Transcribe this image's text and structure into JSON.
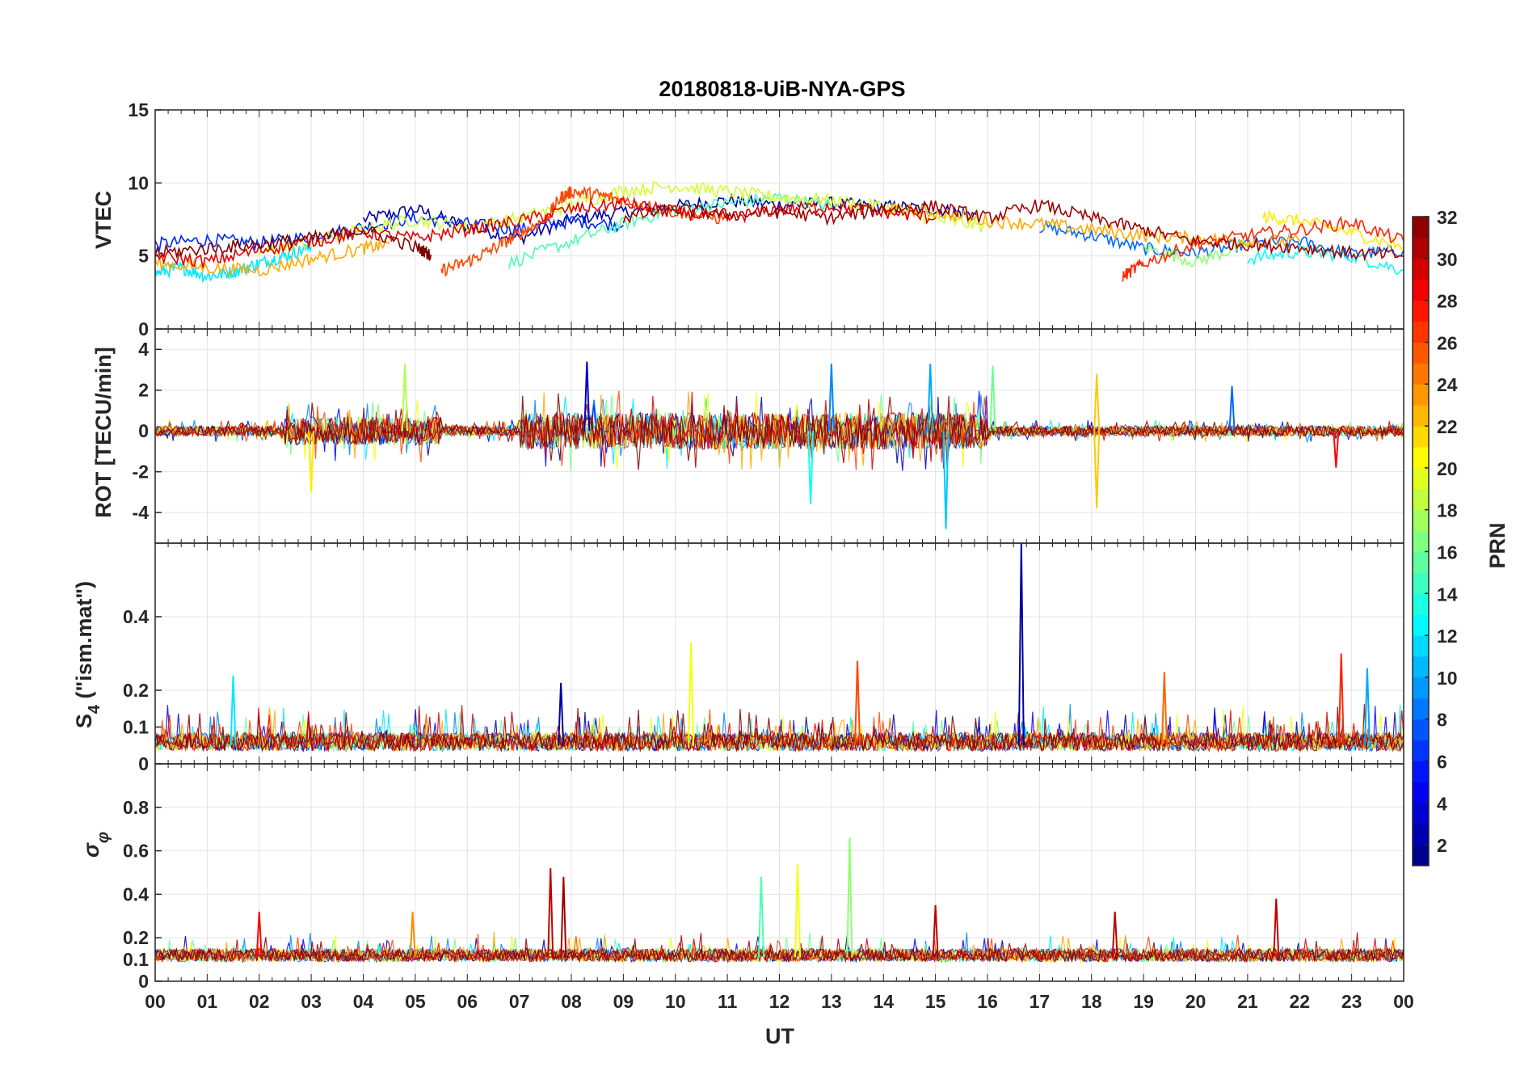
{
  "chart_data": {
    "type": "line",
    "title": "20180818-UiB-NYA-GPS",
    "xlabel": "UT",
    "x_ticks": [
      "00",
      "01",
      "02",
      "03",
      "04",
      "05",
      "06",
      "07",
      "08",
      "09",
      "10",
      "11",
      "12",
      "13",
      "14",
      "15",
      "16",
      "17",
      "18",
      "19",
      "20",
      "21",
      "22",
      "23",
      "00"
    ],
    "xlim_hours": [
      0,
      24
    ],
    "colorbar": {
      "label": "PRN",
      "range": [
        1,
        32
      ],
      "ticks": [
        "2",
        "4",
        "6",
        "8",
        "10",
        "12",
        "14",
        "16",
        "18",
        "20",
        "22",
        "24",
        "26",
        "28",
        "30",
        "32"
      ]
    },
    "panels": [
      {
        "name": "vtec",
        "ylabel": "VTEC",
        "ylim": [
          0,
          15
        ],
        "y_ticks": [
          "0",
          "5",
          "10",
          "15"
        ],
        "series": [
          {
            "prn": 2,
            "x": [
              4.0,
              5.0,
              6.0,
              7.0,
              8.0,
              9.0,
              10.0,
              11.0,
              12.0,
              13.0,
              14.0,
              15.0,
              15.8
            ],
            "y": [
              7.5,
              8.2,
              7.0,
              6.2,
              7.5,
              8.0,
              8.4,
              8.8,
              8.5,
              8.6,
              8.4,
              8.2,
              7.8
            ]
          },
          {
            "prn": 6,
            "x": [
              0.0,
              1.0,
              2.0,
              3.0,
              4.0,
              5.0,
              6.0,
              7.0,
              8.0,
              9.0
            ],
            "y": [
              5.8,
              6.1,
              5.9,
              6.3,
              7.0,
              7.6,
              7.2,
              6.8,
              7.4,
              7.1
            ]
          },
          {
            "prn": 8,
            "x": [
              17.0,
              18.0,
              19.0,
              20.0,
              21.0,
              22.0,
              23.0,
              24.0
            ],
            "y": [
              7.0,
              6.4,
              5.5,
              5.2,
              5.8,
              6.0,
              5.1,
              5.4
            ]
          },
          {
            "prn": 12,
            "x": [
              0.0,
              0.5,
              1.0,
              1.5,
              2.0,
              2.5,
              3.0
            ],
            "y": [
              3.8,
              4.2,
              3.6,
              3.9,
              4.5,
              5.0,
              5.6
            ]
          },
          {
            "prn": 13,
            "x": [
              21.0,
              22.0,
              23.0,
              24.0
            ],
            "y": [
              4.8,
              5.3,
              5.0,
              4.0
            ]
          },
          {
            "prn": 15,
            "x": [
              6.8,
              8.0,
              9.0,
              10.0,
              11.0,
              12.0,
              13.0
            ],
            "y": [
              4.5,
              6.0,
              7.2,
              8.2,
              8.6,
              9.0,
              8.4
            ]
          },
          {
            "prn": 17,
            "x": [
              19.0,
              20.0,
              21.0
            ],
            "y": [
              5.6,
              4.6,
              5.8
            ]
          },
          {
            "prn": 19,
            "x": [
              2.0,
              3.0,
              4.0,
              5.0,
              6.0,
              7.0,
              8.0,
              9.0,
              10.0,
              11.0,
              12.0,
              13.0,
              14.0,
              15.0,
              16.0
            ],
            "y": [
              5.2,
              6.0,
              6.8,
              7.5,
              7.0,
              7.6,
              8.5,
              9.5,
              9.8,
              9.4,
              9.0,
              8.8,
              8.4,
              7.5,
              7.0
            ]
          },
          {
            "prn": 21,
            "x": [
              21.3,
              22.0,
              23.0,
              24.0
            ],
            "y": [
              7.7,
              7.4,
              6.6,
              5.6
            ]
          },
          {
            "prn": 23,
            "x": [
              0.0,
              1.0,
              2.0,
              3.0,
              4.0,
              4.5
            ],
            "y": [
              4.5,
              4.2,
              4.0,
              4.8,
              5.5,
              5.8
            ]
          },
          {
            "prn": 23,
            "x": [
              14.0,
              15.0,
              16.0,
              17.0,
              18.0,
              19.0,
              20.0,
              21.0,
              22.0
            ],
            "y": [
              8.2,
              8.0,
              7.4,
              7.2,
              6.8,
              6.4,
              6.2,
              6.0,
              6.0
            ]
          },
          {
            "prn": 26,
            "x": [
              5.5,
              6.0,
              6.5,
              7.0,
              7.5,
              7.8,
              8.0,
              8.5,
              9.0,
              10.0,
              11.0
            ],
            "y": [
              4.0,
              4.6,
              5.5,
              6.5,
              7.5,
              9.0,
              9.4,
              9.2,
              8.8,
              8.0,
              7.5
            ]
          },
          {
            "prn": 27,
            "x": [
              18.6,
              19.0,
              20.0,
              21.0,
              22.0,
              23.0,
              24.0
            ],
            "y": [
              3.6,
              4.5,
              5.8,
              6.4,
              6.8,
              7.3,
              6.0
            ]
          },
          {
            "prn": 29,
            "x": [
              0.0,
              1.0,
              2.0,
              3.0,
              4.0,
              5.0,
              6.0,
              7.0,
              8.0,
              9.0,
              10.0,
              11.0,
              12.0,
              13.0,
              14.0,
              15.0
            ],
            "y": [
              5.0,
              4.6,
              5.4,
              6.0,
              6.6,
              6.2,
              6.8,
              7.4,
              8.2,
              8.6,
              8.0,
              7.6,
              8.2,
              8.4,
              8.0,
              7.6
            ]
          },
          {
            "prn": 31,
            "x": [
              9.0,
              10.0,
              11.0,
              12.0,
              13.0,
              14.0,
              15.0,
              16.0,
              17.0,
              18.0,
              19.0,
              20.0,
              21.0,
              22.0,
              23.0,
              24.0
            ],
            "y": [
              7.6,
              8.2,
              7.8,
              8.0,
              7.6,
              8.2,
              8.4,
              7.6,
              8.5,
              7.6,
              6.8,
              6.0,
              5.8,
              5.6,
              5.2,
              5.0
            ]
          },
          {
            "prn": 32,
            "x": [
              0.0,
              1.0,
              2.0,
              3.0,
              4.0,
              5.0,
              5.3
            ],
            "y": [
              5.2,
              5.5,
              5.8,
              6.2,
              6.8,
              5.6,
              5.1
            ]
          }
        ]
      },
      {
        "name": "rot",
        "ylabel": "ROT [TECU/min]",
        "ylim": [
          -5.5,
          5.0
        ],
        "y_ticks": [
          "-4",
          "-2",
          "0",
          "2",
          "4"
        ],
        "spikes": [
          {
            "prn": 18,
            "x": 4.8,
            "y": 3.3
          },
          {
            "prn": 3,
            "x": 8.3,
            "y": 3.4
          },
          {
            "prn": 9,
            "x": 13.0,
            "y": 3.3
          },
          {
            "prn": 11,
            "x": 15.2,
            "y": -4.8
          },
          {
            "prn": 10,
            "x": 14.9,
            "y": 3.3
          },
          {
            "prn": 16,
            "x": 16.1,
            "y": 3.2
          },
          {
            "prn": 22,
            "x": 18.1,
            "y": 2.8
          },
          {
            "prn": 22,
            "x": 18.1,
            "y": -3.8
          },
          {
            "prn": 21,
            "x": 3.0,
            "y": -3.0
          },
          {
            "prn": 13,
            "x": 12.6,
            "y": -3.6
          },
          {
            "prn": 8,
            "x": 20.7,
            "y": 2.2
          },
          {
            "prn": 28,
            "x": 22.7,
            "y": -1.8
          }
        ]
      },
      {
        "name": "s4",
        "ylabel": "S4 (\"ism.mat\")",
        "ylim": [
          0,
          0.6
        ],
        "y_ticks": [
          "0",
          "0.1",
          "0.2",
          "0.4"
        ],
        "spikes": [
          {
            "prn": 2,
            "x": 16.65,
            "y": 0.6
          },
          {
            "prn": 20,
            "x": 10.3,
            "y": 0.33
          },
          {
            "prn": 12,
            "x": 1.5,
            "y": 0.24
          },
          {
            "prn": 27,
            "x": 22.8,
            "y": 0.3
          },
          {
            "prn": 25,
            "x": 19.4,
            "y": 0.25
          },
          {
            "prn": 26,
            "x": 13.5,
            "y": 0.28
          },
          {
            "prn": 2,
            "x": 7.8,
            "y": 0.22
          },
          {
            "prn": 10,
            "x": 23.3,
            "y": 0.26
          }
        ]
      },
      {
        "name": "sigma_phi",
        "ylabel": "σφ",
        "ylim": [
          0,
          1.0
        ],
        "y_ticks": [
          "0",
          "0.1",
          "0.2",
          "0.4",
          "0.6",
          "0.8"
        ],
        "spikes": [
          {
            "prn": 30,
            "x": 7.6,
            "y": 0.52
          },
          {
            "prn": 31,
            "x": 7.85,
            "y": 0.48
          },
          {
            "prn": 17,
            "x": 13.35,
            "y": 0.66
          },
          {
            "prn": 20,
            "x": 12.35,
            "y": 0.54
          },
          {
            "prn": 15,
            "x": 11.65,
            "y": 0.48
          },
          {
            "prn": 30,
            "x": 21.55,
            "y": 0.38
          },
          {
            "prn": 30,
            "x": 15.0,
            "y": 0.35
          },
          {
            "prn": 28,
            "x": 2.0,
            "y": 0.32
          },
          {
            "prn": 24,
            "x": 4.95,
            "y": 0.32
          },
          {
            "prn": 30,
            "x": 18.45,
            "y": 0.32
          }
        ]
      }
    ]
  }
}
